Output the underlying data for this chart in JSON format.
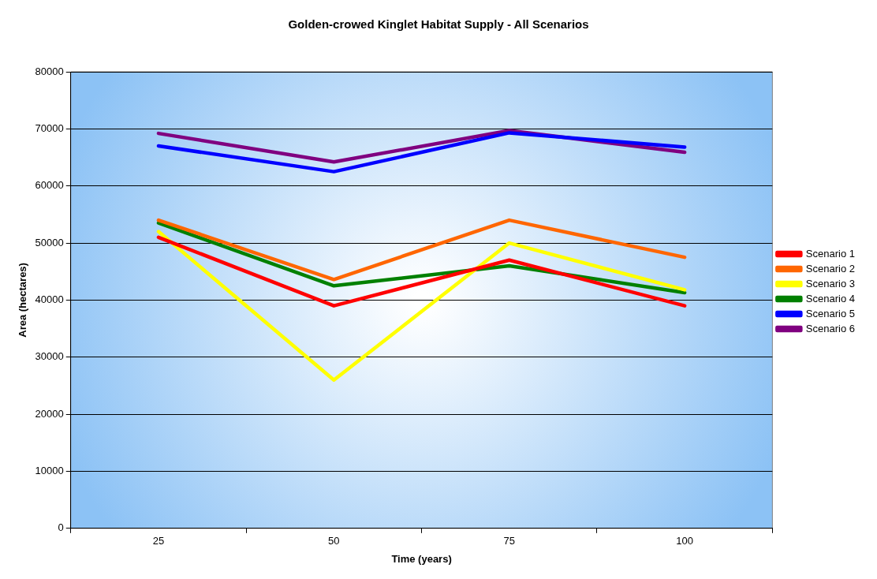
{
  "chart_data": {
    "type": "line",
    "title": "Golden-crowed Kinglet Habitat Supply - All Scenarios",
    "xlabel": "Time (years)",
    "ylabel": "Area (hectares)",
    "categories": [
      "25",
      "50",
      "75",
      "100"
    ],
    "series": [
      {
        "name": "Scenario 1",
        "color": "#ff0000",
        "values": [
          51000,
          39000,
          47000,
          39000
        ]
      },
      {
        "name": "Scenario 2",
        "color": "#ff6600",
        "values": [
          54000,
          43600,
          54000,
          47500
        ]
      },
      {
        "name": "Scenario 3",
        "color": "#ffff00",
        "values": [
          52000,
          26000,
          50000,
          41800
        ]
      },
      {
        "name": "Scenario 4",
        "color": "#008000",
        "values": [
          53500,
          42500,
          46000,
          41300
        ]
      },
      {
        "name": "Scenario 5",
        "color": "#0000ff",
        "values": [
          67000,
          62500,
          69300,
          66800
        ]
      },
      {
        "name": "Scenario 6",
        "color": "#800080",
        "values": [
          69200,
          64200,
          69700,
          65900
        ]
      }
    ],
    "ylim": [
      0,
      80000
    ],
    "yticks": [
      0,
      10000,
      20000,
      30000,
      40000,
      50000,
      60000,
      70000,
      80000
    ],
    "grid": "y",
    "legend": "right",
    "marker": "none",
    "line_style": "solid"
  }
}
